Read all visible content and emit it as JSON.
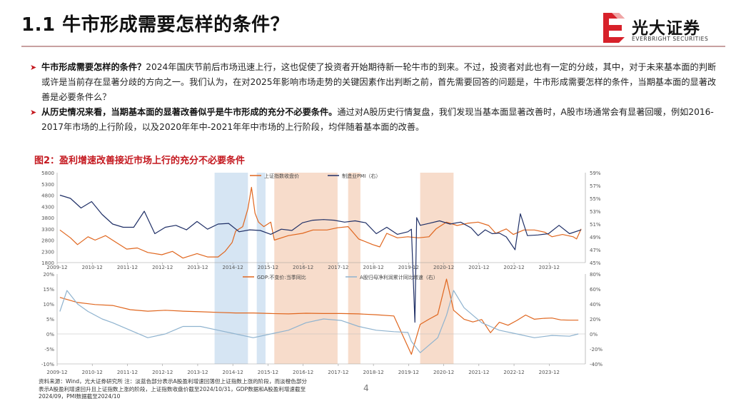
{
  "page": {
    "title": "1.1 牛市形成需要怎样的条件？",
    "page_number": "4"
  },
  "logo": {
    "cn": "光大证券",
    "en": "EVERBRIGHT SECURITIES"
  },
  "bullets": [
    {
      "bold": "牛市形成需要怎样的条件？",
      "text": "2024年国庆节前后市场迅速上行，这也促使了投资者开始期待新一轮牛市的到来。不过，投资者对此也有一定的分歧，其中，对于未来基本面的判断或许是当前存在显著分歧的方向之一。我们认为，在对2025年影响市场走势的关键因素作出判断之前，首先需要回答的问题是，牛市形成需要怎样的条件，当期基本面的显著改善是必要条件么？"
    },
    {
      "bold": "从历史情况来看，当期基本面的显著改善似乎是牛市形成的充分不必要条件。",
      "text": "通过对A股历史行情复盘，我们发现当基本面显著改善时，A股市场通常会有显著回暖，例如2016-2017年市场的上行阶段，以及2020年年中-2021年年中市场的上行阶段，均伴随着基本面的改善。"
    }
  ],
  "figure": {
    "title": "图2：盈利增速改善接近市场上行的充分不必要条件",
    "note_line1": "资料来源：Wind，光大证券研究所        注：淡蓝色部分表示A股盈利增速回落但上证指数上涨的阶段，而淡橙色部分",
    "note_line2": "表示A股盈利增速回升且上证指数上涨的阶段，上证指数收盘价截至2024/10/31，GDP数据和A股盈利增速截至",
    "note_line3": "2024/09，PMI数据截至2024/10"
  },
  "chart_data": [
    {
      "type": "line",
      "title": "",
      "series": [
        {
          "name": "上证指数收盘价",
          "axis": "left",
          "color": "#e0661e",
          "x": [
            2010.0,
            2010.3,
            2010.5,
            2010.8,
            2011.0,
            2011.3,
            2011.6,
            2011.9,
            2012.2,
            2012.5,
            2012.9,
            2013.2,
            2013.5,
            2013.9,
            2014.2,
            2014.5,
            2014.7,
            2014.9,
            2015.0,
            2015.2,
            2015.35,
            2015.45,
            2015.55,
            2015.65,
            2015.8,
            2016.0,
            2016.1,
            2016.5,
            2016.9,
            2017.2,
            2017.6,
            2017.9,
            2018.2,
            2018.5,
            2018.9,
            2019.1,
            2019.3,
            2019.6,
            2019.9,
            2020.2,
            2020.5,
            2020.7,
            2021.0,
            2021.3,
            2021.6,
            2021.9,
            2022.2,
            2022.4,
            2022.7,
            2022.9,
            2023.2,
            2023.5,
            2023.8,
            2024.0,
            2024.3,
            2024.6,
            2024.7,
            2024.83
          ],
          "values": [
            3250,
            2900,
            2600,
            2950,
            2800,
            3000,
            2700,
            2400,
            2450,
            2250,
            2150,
            2300,
            2000,
            2200,
            2050,
            2050,
            2300,
            2700,
            3200,
            3400,
            4200,
            5150,
            4000,
            3600,
            3400,
            3600,
            2800,
            3000,
            3100,
            3250,
            3250,
            3350,
            3400,
            2850,
            2600,
            2500,
            3100,
            2900,
            2950,
            2900,
            2950,
            3300,
            3600,
            3450,
            3550,
            3600,
            3450,
            3100,
            3300,
            3050,
            3250,
            3250,
            3150,
            2950,
            3050,
            2950,
            2850,
            3300
          ]
        },
        {
          "name": "制造业PMI（右）",
          "axis": "right",
          "color": "#1f2f66",
          "x": [
            2010.0,
            2010.3,
            2010.6,
            2010.9,
            2011.2,
            2011.5,
            2011.8,
            2012.1,
            2012.4,
            2012.7,
            2013.0,
            2013.3,
            2013.6,
            2013.9,
            2014.2,
            2014.5,
            2014.8,
            2015.1,
            2015.4,
            2015.7,
            2016.0,
            2016.3,
            2016.6,
            2016.9,
            2017.2,
            2017.5,
            2017.8,
            2018.1,
            2018.4,
            2018.7,
            2019.0,
            2019.3,
            2019.6,
            2019.9,
            2020.0,
            2020.1,
            2020.15,
            2020.25,
            2020.5,
            2020.8,
            2021.1,
            2021.4,
            2021.7,
            2021.9,
            2022.1,
            2022.3,
            2022.5,
            2022.7,
            2022.95,
            2023.1,
            2023.3,
            2023.6,
            2023.9,
            2024.2,
            2024.5,
            2024.83
          ],
          "values": [
            55.5,
            55.0,
            53.5,
            54.5,
            52.5,
            51.0,
            50.5,
            50.5,
            53.0,
            49.5,
            50.5,
            50.8,
            50.1,
            51.4,
            50.2,
            51.0,
            51.1,
            49.8,
            50.1,
            50.0,
            49.4,
            50.2,
            50.0,
            51.2,
            51.6,
            51.7,
            51.6,
            51.3,
            51.5,
            51.2,
            49.5,
            50.5,
            49.4,
            49.8,
            50.2,
            35.7,
            52.0,
            50.8,
            51.1,
            51.5,
            51.0,
            51.3,
            50.4,
            49.2,
            50.1,
            49.5,
            49.6,
            49.0,
            47.0,
            52.6,
            49.2,
            49.3,
            49.5,
            50.8,
            49.5,
            50.1
          ]
        }
      ],
      "left_ylim": [
        1800,
        5800
      ],
      "left_ticks": [
        "5800",
        "5300",
        "4800",
        "4300",
        "3800",
        "3300",
        "2800",
        "2300",
        "1800"
      ],
      "right_ylim": [
        45,
        59
      ],
      "right_ticks": [
        "59%",
        "57%",
        "55%",
        "53%",
        "51%",
        "49%",
        "47%",
        "45%"
      ],
      "x_ticks": [
        "2009-12",
        "2010-12",
        "2011-12",
        "2012-12",
        "2013-12",
        "2014-12",
        "2015-12",
        "2016-12",
        "2017-12",
        "2018-12",
        "2019-12",
        "2020-12",
        "2021-12",
        "2022-12",
        "2023-12"
      ],
      "legend": "top-center",
      "shaded_blue": [
        [
          2014.4,
          2015.35
        ],
        [
          2015.6,
          2015.85
        ]
      ],
      "shaded_orange": [
        [
          2016.1,
          2017.9
        ],
        [
          2018.2,
          2018.55
        ],
        [
          2020.25,
          2021.2
        ]
      ]
    },
    {
      "type": "line",
      "title": "",
      "series": [
        {
          "name": "GDP:不变价:当季同比",
          "axis": "left",
          "color": "#e0661e",
          "x": [
            2010.0,
            2010.5,
            2011.0,
            2011.5,
            2012.0,
            2012.5,
            2013.0,
            2013.5,
            2014.0,
            2014.5,
            2015.0,
            2015.5,
            2016.0,
            2016.5,
            2017.0,
            2017.5,
            2018.0,
            2018.5,
            2019.0,
            2019.5,
            2020.0,
            2020.25,
            2020.5,
            2020.75,
            2021.0,
            2021.2,
            2021.5,
            2021.75,
            2022.0,
            2022.25,
            2022.5,
            2022.75,
            2023.0,
            2023.25,
            2023.5,
            2023.75,
            2024.0,
            2024.25,
            2024.5,
            2024.75
          ],
          "values": [
            12.2,
            10.5,
            9.8,
            9.5,
            8.1,
            7.6,
            7.9,
            7.6,
            7.4,
            7.2,
            7.0,
            7.0,
            6.8,
            6.7,
            6.9,
            6.8,
            6.8,
            6.7,
            6.4,
            6.0,
            -6.8,
            3.2,
            4.9,
            6.5,
            18.3,
            7.9,
            4.9,
            4.0,
            4.8,
            0.4,
            3.9,
            2.9,
            4.5,
            6.3,
            4.9,
            5.2,
            5.3,
            4.7,
            4.6,
            4.6
          ]
        },
        {
          "name": "A股归母净利润累计同比增速（右）",
          "axis": "right",
          "color": "#8fb3cf",
          "x": [
            2010.0,
            2010.2,
            2010.5,
            2010.8,
            2011.2,
            2011.5,
            2012.0,
            2012.5,
            2013.0,
            2013.5,
            2014.0,
            2014.5,
            2015.0,
            2015.5,
            2016.0,
            2016.5,
            2017.0,
            2017.5,
            2018.0,
            2018.5,
            2019.0,
            2019.5,
            2019.9,
            2020.0,
            2020.25,
            2020.5,
            2020.75,
            2021.0,
            2021.2,
            2021.5,
            2021.75,
            2022.0,
            2022.5,
            2023.0,
            2023.5,
            2024.0,
            2024.5,
            2024.75
          ],
          "values": [
            30,
            58,
            40,
            30,
            20,
            15,
            5,
            -5,
            0,
            10,
            10,
            5,
            0,
            -5,
            0,
            5,
            15,
            20,
            18,
            10,
            5,
            3,
            2,
            -10,
            -25,
            -15,
            -5,
            25,
            58,
            35,
            25,
            15,
            5,
            0,
            -5,
            -2,
            -3,
            0
          ]
        }
      ],
      "left_ylim": [
        -10,
        20
      ],
      "left_ticks": [
        "20%",
        "15%",
        "10%",
        "5%",
        "0%",
        "-5%",
        "-10%"
      ],
      "right_ylim": [
        -40,
        80
      ],
      "right_ticks": [
        "80%",
        "60%",
        "40%",
        "20%",
        "0%",
        "-20%",
        "-40%"
      ],
      "x_ticks": [
        "2009-12",
        "2010-12",
        "2011-12",
        "2012-12",
        "2013-12",
        "2014-12",
        "2015-12",
        "2016-12",
        "2017-12",
        "2018-12",
        "2019-12",
        "2020-12",
        "2021-12",
        "2022-12",
        "2023-12"
      ],
      "legend": "top-center",
      "shaded_blue": [
        [
          2014.4,
          2015.35
        ],
        [
          2015.6,
          2015.85
        ]
      ],
      "shaded_orange": [
        [
          2016.1,
          2017.9
        ],
        [
          2018.2,
          2018.55
        ],
        [
          2020.25,
          2021.2
        ]
      ]
    }
  ]
}
